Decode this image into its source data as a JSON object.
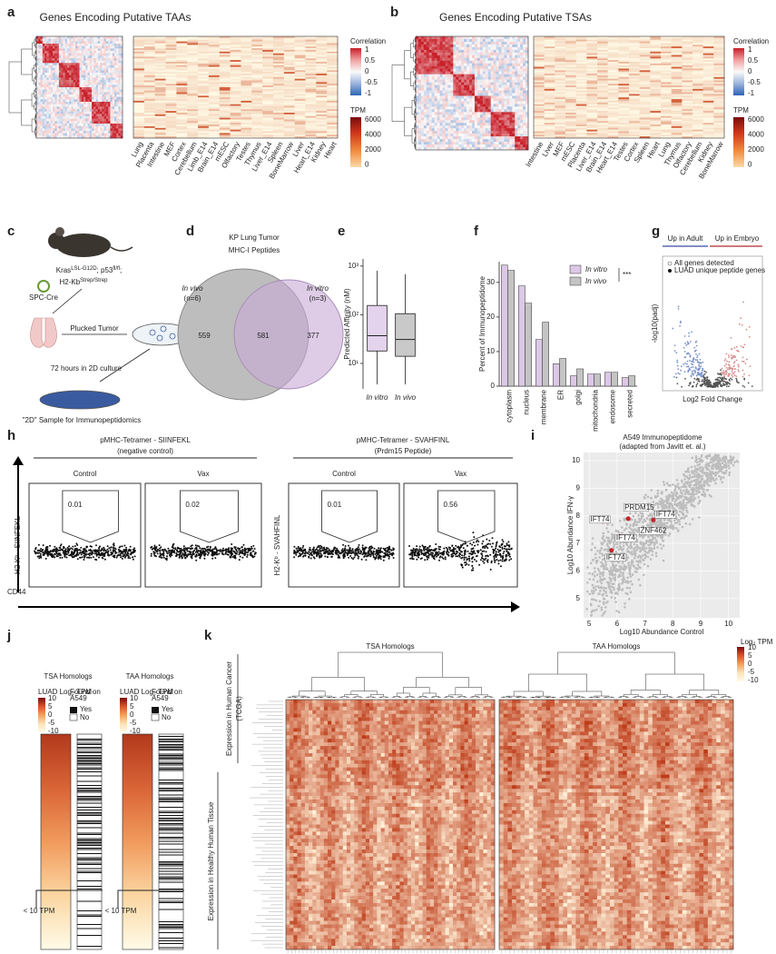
{
  "panels": {
    "a": {
      "letter": "a",
      "title": "Genes Encoding Putative TAAs",
      "tissues": [
        "Lung",
        "Placenta",
        "Intestine",
        "MEF",
        "Cortex",
        "Cerebellum",
        "Limb_E14",
        "Brain_E14",
        "mESC",
        "Olfactory",
        "Testes",
        "Thymus",
        "Liver_E14",
        "Spleen",
        "BoneMarrow",
        "Liver",
        "Heart_E14",
        "Kidney",
        "Heart"
      ],
      "correlation": "Correlation",
      "corr_ticks": [
        1,
        0.5,
        0,
        -0.5,
        -1
      ],
      "tpm": "TPM",
      "tpm_ticks": [
        6000,
        4000,
        2000,
        0
      ]
    },
    "b": {
      "letter": "b",
      "title": "Genes Encoding Putative TSAs",
      "tissues": [
        "Intestine",
        "Liver",
        "MEF",
        "mESC",
        "Placenta",
        "Liver_E14",
        "Brain_E14",
        "Heart_E14",
        "Testes",
        "Cortex",
        "Spleen",
        "Heart",
        "Lung",
        "Thymus",
        "Olfactory",
        "Cerebellum",
        "Kidney",
        "BoneMarrow"
      ],
      "correlation": "Correlation",
      "corr_ticks": [
        1,
        0.5,
        0,
        -0.5,
        -1
      ],
      "tpm": "TPM",
      "tpm_ticks": [
        6000,
        4000,
        2000,
        0
      ]
    },
    "c": {
      "letter": "c",
      "genotype": [
        {
          "text": "Kras"
        },
        {
          "text": "LSL-G12D",
          "sup": true
        },
        {
          "text": "; p53"
        },
        {
          "text": "fl/fl",
          "sup": true
        },
        {
          "text": ";"
        }
      ],
      "h2": [
        {
          "text": "H2-Kb"
        },
        {
          "text": "Strep/Strep",
          "sup": true
        }
      ],
      "cre": "SPC-Cre",
      "plucked": "Plucked Tumor",
      "culture": "72 hours in 2D culture",
      "sample": "\"2D\" Sample for Immunopeptidomics"
    },
    "d": {
      "letter": "d",
      "title": [
        "KP Lung Tumor",
        "MHC-I Peptides"
      ],
      "left": [
        "In vivo",
        "(n=6)"
      ],
      "right": [
        "In vitro",
        "(n=3)"
      ],
      "counts": [
        559,
        581,
        377
      ]
    },
    "g": {
      "letter": "g",
      "up_adult": "Up in Adult",
      "up_embryo": "Up in Embryo",
      "legend": [
        "All genes detected",
        "LUAD unique peptide genes"
      ],
      "y_label": "-log10(padj)",
      "x_label": "Log2 Fold Change"
    },
    "h": {
      "letter": "h",
      "x_label": "CD44",
      "groups": [
        {
          "title": "pMHC-Tetramer - SIINFEKL",
          "subtitle": "(negative control)",
          "y_label": "H2-Kᵇ - SIINFEKL",
          "plots": [
            {
              "label": "Control",
              "gate": 0.01
            },
            {
              "label": "Vax",
              "gate": 0.02
            }
          ]
        },
        {
          "title": "pMHC-Tetramer - SVAHFINL",
          "subtitle": "(Prdm15 Peptide)",
          "y_label": "H2-Kᵇ - SVAHFINL",
          "plots": [
            {
              "label": "Control",
              "gate": 0.01
            },
            {
              "label": "Vax",
              "gate": 0.56
            }
          ]
        }
      ]
    },
    "j": {
      "letter": "j",
      "titles": [
        "TSA Homologs",
        "TAA Homologs"
      ],
      "scale": "LUAD Log₂ TPM",
      "ticks": [
        10,
        5,
        0,
        -5,
        -10
      ],
      "found": [
        "Found on",
        "A549"
      ],
      "yes": "Yes",
      "no": "No",
      "cutoff": "< 10 TPM"
    },
    "k": {
      "letter": "k",
      "titles": [
        "TSA Homologs",
        "TAA Homologs"
      ],
      "scale": "Log₂ TPM",
      "ticks": [
        10,
        5,
        0,
        -5,
        -10
      ],
      "cancer": [
        "Expression in Human Cancer",
        "(TCGA)"
      ],
      "healthy": "Expression in Healthy Human Tissue"
    }
  },
  "chart_data": [
    {
      "type": "box",
      "letter": "e",
      "y_label": "Predicted Affinity (nM)",
      "categories": [
        "In vitro",
        "In vivo"
      ],
      "colors": [
        "#e4d3ec",
        "#c9c9c9"
      ],
      "boxes": [
        {
          "whisker_low": 3.7,
          "q1": 18,
          "median": 37,
          "q3": 155,
          "whisker_high": 800
        },
        {
          "whisker_low": 3.7,
          "q1": 14,
          "median": 31,
          "q3": 105,
          "whisker_high": 680
        }
      ],
      "log_scale": true,
      "ylim": [
        3,
        1400
      ],
      "yticks": [
        {
          "value": 10,
          "label": "10¹"
        },
        {
          "value": 100,
          "label": "10²"
        },
        {
          "value": 1000,
          "label": "10³"
        }
      ]
    },
    {
      "type": "bar",
      "letter": "f",
      "y_label": "Percent of Immunopeptidome",
      "categories": [
        "cytoplasm",
        "nucleus",
        "membrane",
        "ER",
        "golgi",
        "mitochondria",
        "endosome",
        "secreted"
      ],
      "series": [
        {
          "name": "In vitro",
          "color": "#dcc8e6",
          "values": [
            35,
            29,
            13.5,
            6.5,
            3,
            3.5,
            4,
            2.5
          ]
        },
        {
          "name": "In vivo",
          "color": "#c4c4c4",
          "values": [
            33.5,
            24,
            18.5,
            8,
            5,
            3.5,
            4,
            3
          ]
        }
      ],
      "annotation": "***",
      "ylim": [
        0,
        36
      ],
      "yticks": [
        0,
        10,
        20,
        30
      ]
    },
    {
      "type": "scatter",
      "letter": "i",
      "title": "A549 Immunopeptidome",
      "subtitle": "(adapted from Javitt et. al.)",
      "x_label": "Log10 Abundance Control",
      "y_label": "Log10 Abundance IFN-γ",
      "color": "#c0272d",
      "labels": [
        "PRDM15",
        "IFT74",
        "IFT74",
        "ZNF462",
        "IFT74",
        "IFT74"
      ],
      "x": [
        6.4,
        5.5,
        6.1,
        6.9,
        7.3,
        5.8
      ],
      "y": [
        7.9,
        7.8,
        7.25,
        7.45,
        7.85,
        6.75
      ],
      "xlim": [
        4.8,
        10.4
      ],
      "ylim": [
        4.3,
        10.3
      ],
      "xticks": [
        5,
        6,
        7,
        8,
        9,
        10
      ],
      "yticks": [
        5,
        6,
        7,
        8,
        9,
        10
      ]
    }
  ]
}
